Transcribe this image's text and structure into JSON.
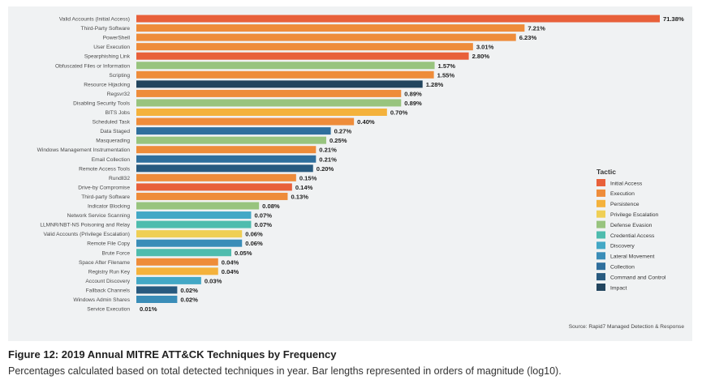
{
  "chart_data": {
    "type": "bar",
    "orientation": "horizontal",
    "scale": "log10",
    "categories": [
      "Valid Accounts (Initial Access)",
      "Third-Party Software",
      "PowerShell",
      "User Execution",
      "Spearphishing Link",
      "Obfuscated Files or Information",
      "Scripting",
      "Resource Hijacking",
      "Regsvr32",
      "Disabling Security Tools",
      "BITS Jobs",
      "Scheduled Task",
      "Data Staged",
      "Masquerading",
      "Windows Management Instrumentation",
      "Email Collection",
      "Remote Access Tools",
      "Rundll32",
      "Drive-by Compromise",
      "Third-party Software",
      "Indicator Blocking",
      "Network Service Scanning",
      "LLMNR/NBT-NS Poisoning and Relay",
      "Valid Accounts (Privilege Escalation)",
      "Remote File Copy",
      "Brute Force",
      "Space After Filename",
      "Registry Run Key",
      "Account Discovery",
      "Fallback Channels",
      "Windows Admin Shares",
      "Service Execution"
    ],
    "values": [
      71.38,
      7.21,
      6.23,
      3.01,
      2.8,
      1.57,
      1.55,
      1.28,
      0.89,
      0.89,
      0.7,
      0.4,
      0.27,
      0.25,
      0.21,
      0.21,
      0.2,
      0.15,
      0.14,
      0.13,
      0.08,
      0.07,
      0.07,
      0.06,
      0.06,
      0.05,
      0.04,
      0.04,
      0.03,
      0.02,
      0.02,
      0.01
    ],
    "value_labels": [
      "71.38%",
      "7.21%",
      "6.23%",
      "3.01%",
      "2.80%",
      "1.57%",
      "1.55%",
      "1.28%",
      "0.89%",
      "0.89%",
      "0.70%",
      "0.40%",
      "0.27%",
      "0.25%",
      "0.21%",
      "0.21%",
      "0.20%",
      "0.15%",
      "0.14%",
      "0.13%",
      "0.08%",
      "0.07%",
      "0.07%",
      "0.06%",
      "0.06%",
      "0.05%",
      "0.04%",
      "0.04%",
      "0.03%",
      "0.02%",
      "0.02%",
      "0.01%"
    ],
    "tactics": [
      "Initial Access",
      "Execution",
      "Execution",
      "Execution",
      "Initial Access",
      "Defense Evasion",
      "Execution",
      "Impact",
      "Execution",
      "Defense Evasion",
      "Persistence",
      "Execution",
      "Collection",
      "Defense Evasion",
      "Execution",
      "Collection",
      "Command and Control",
      "Execution",
      "Initial Access",
      "Execution",
      "Defense Evasion",
      "Discovery",
      "Credential Access",
      "Privilege Escalation",
      "Lateral Movement",
      "Credential Access",
      "Execution",
      "Persistence",
      "Discovery",
      "Command and Control",
      "Lateral Movement",
      "Execution"
    ],
    "legend": {
      "title": "Tactic",
      "placement": "right",
      "entries": [
        {
          "name": "Initial Access",
          "color": "#e8603a"
        },
        {
          "name": "Execution",
          "color": "#ee8c3a"
        },
        {
          "name": "Persistence",
          "color": "#f4b23c"
        },
        {
          "name": "Privilege Escalation",
          "color": "#efcf55"
        },
        {
          "name": "Defense Evasion",
          "color": "#98c47e"
        },
        {
          "name": "Credential Access",
          "color": "#4ebcae"
        },
        {
          "name": "Discovery",
          "color": "#43a8c6"
        },
        {
          "name": "Lateral Movement",
          "color": "#3a8db8"
        },
        {
          "name": "Collection",
          "color": "#2f6f9d"
        },
        {
          "name": "Command and Control",
          "color": "#285a7f"
        },
        {
          "name": "Impact",
          "color": "#22455e"
        }
      ]
    },
    "source": "Source: Rapid7 Managed Detection & Response",
    "grid": false
  },
  "caption": {
    "title": "Figure 12: 2019 Annual MITRE ATT&CK Techniques by Frequency",
    "body": "Percentages calculated based on total detected techniques in year. Bar lengths represented in orders of magnitude (log10)."
  },
  "colors": {
    "panel_background": "#f0f2f3",
    "label_text": "#4a4a4a",
    "value_text": "#222222"
  }
}
